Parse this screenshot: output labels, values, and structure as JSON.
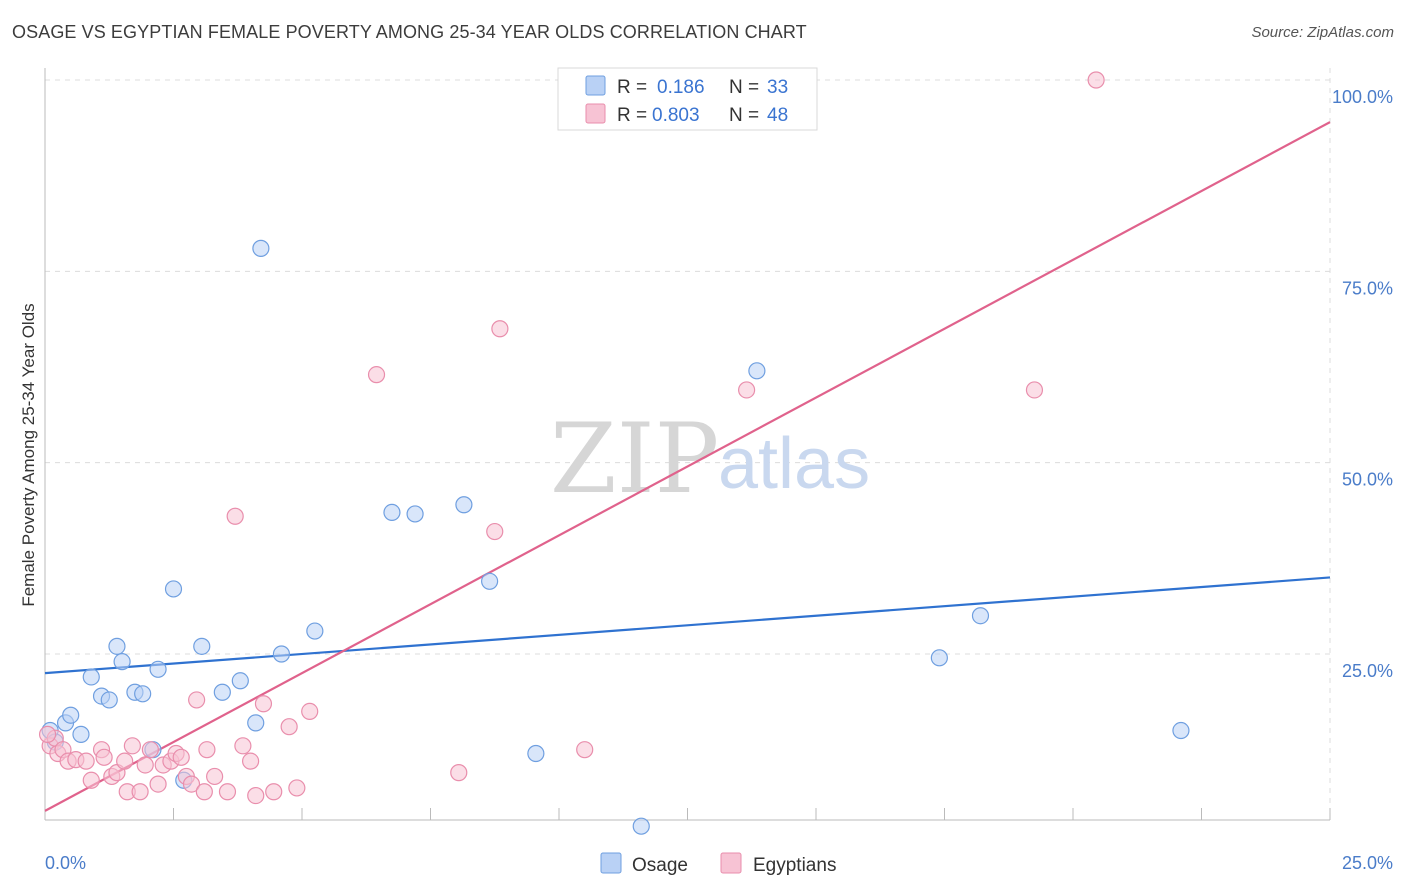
{
  "chart_data": {
    "type": "scatter",
    "title": "OSAGE VS EGYPTIAN FEMALE POVERTY AMONG 25-34 YEAR OLDS CORRELATION CHART",
    "source": "Source: ZipAtlas.com",
    "ylabel": "Female Poverty Among 25-34 Year Olds",
    "xlabel": "",
    "xlim": [
      0,
      25
    ],
    "ylim": [
      0,
      105
    ],
    "x_tick_labels": [
      "0.0%",
      "25.0%"
    ],
    "y_ticks": [
      25,
      50,
      75,
      100
    ],
    "y_tick_labels": [
      "25.0%",
      "50.0%",
      "75.0%",
      "100.0%"
    ],
    "grid": true,
    "watermark": {
      "zip": "ZIP",
      "atlas": "atlas"
    },
    "legend_stats": [
      {
        "series": "Osage",
        "r_label": "R =",
        "r": "0.186",
        "n_label": "N =",
        "n": "33"
      },
      {
        "series": "Egyptians",
        "r_label": "R =",
        "r": "0.803",
        "n_label": "N =",
        "n": "48"
      }
    ],
    "series": [
      {
        "name": "Osage",
        "color": "#6f9fe0",
        "fill": "#b9d1f5",
        "line_color": "#2f72d0",
        "trend": {
          "x": [
            0,
            25
          ],
          "y": [
            22.5,
            35.0
          ]
        },
        "points": [
          {
            "x": 0.1,
            "y": 15.0
          },
          {
            "x": 0.2,
            "y": 13.5
          },
          {
            "x": 0.4,
            "y": 16.0
          },
          {
            "x": 0.5,
            "y": 17.0
          },
          {
            "x": 0.7,
            "y": 14.5
          },
          {
            "x": 0.9,
            "y": 22.0
          },
          {
            "x": 1.1,
            "y": 19.5
          },
          {
            "x": 1.25,
            "y": 19.0
          },
          {
            "x": 1.4,
            "y": 26.0
          },
          {
            "x": 1.5,
            "y": 24.0
          },
          {
            "x": 1.75,
            "y": 20.0
          },
          {
            "x": 1.9,
            "y": 19.8
          },
          {
            "x": 2.1,
            "y": 12.5
          },
          {
            "x": 2.2,
            "y": 23.0
          },
          {
            "x": 2.5,
            "y": 33.5
          },
          {
            "x": 2.7,
            "y": 8.5
          },
          {
            "x": 3.05,
            "y": 26.0
          },
          {
            "x": 3.45,
            "y": 20.0
          },
          {
            "x": 3.8,
            "y": 21.5
          },
          {
            "x": 4.1,
            "y": 16.0
          },
          {
            "x": 4.2,
            "y": 78.0
          },
          {
            "x": 4.6,
            "y": 25.0
          },
          {
            "x": 5.25,
            "y": 28.0
          },
          {
            "x": 6.75,
            "y": 43.5
          },
          {
            "x": 7.2,
            "y": 43.3
          },
          {
            "x": 8.15,
            "y": 44.5
          },
          {
            "x": 8.65,
            "y": 34.5
          },
          {
            "x": 9.55,
            "y": 12.0
          },
          {
            "x": 11.6,
            "y": 2.5
          },
          {
            "x": 13.85,
            "y": 62.0
          },
          {
            "x": 17.4,
            "y": 24.5
          },
          {
            "x": 18.2,
            "y": 30.0
          },
          {
            "x": 22.1,
            "y": 15.0
          }
        ]
      },
      {
        "name": "Egyptians",
        "color": "#e98eac",
        "fill": "#f7c3d4",
        "line_color": "#e0628c",
        "trend": {
          "x": [
            0,
            25
          ],
          "y": [
            4.5,
            94.5
          ]
        },
        "points": [
          {
            "x": 0.1,
            "y": 13.0
          },
          {
            "x": 0.2,
            "y": 14.0
          },
          {
            "x": 0.25,
            "y": 12.0
          },
          {
            "x": 0.35,
            "y": 12.5
          },
          {
            "x": 0.45,
            "y": 11.0
          },
          {
            "x": 0.6,
            "y": 11.2
          },
          {
            "x": 0.8,
            "y": 11.0
          },
          {
            "x": 0.9,
            "y": 8.5
          },
          {
            "x": 1.1,
            "y": 12.5
          },
          {
            "x": 1.15,
            "y": 11.5
          },
          {
            "x": 1.3,
            "y": 9.0
          },
          {
            "x": 1.4,
            "y": 9.5
          },
          {
            "x": 1.55,
            "y": 11.0
          },
          {
            "x": 1.6,
            "y": 7.0
          },
          {
            "x": 1.7,
            "y": 13.0
          },
          {
            "x": 1.85,
            "y": 7.0
          },
          {
            "x": 1.95,
            "y": 10.5
          },
          {
            "x": 2.05,
            "y": 12.5
          },
          {
            "x": 2.2,
            "y": 8.0
          },
          {
            "x": 2.3,
            "y": 10.5
          },
          {
            "x": 2.45,
            "y": 11.0
          },
          {
            "x": 2.55,
            "y": 12.0
          },
          {
            "x": 2.65,
            "y": 11.5
          },
          {
            "x": 2.75,
            "y": 9.0
          },
          {
            "x": 2.85,
            "y": 8.0
          },
          {
            "x": 2.95,
            "y": 19.0
          },
          {
            "x": 3.1,
            "y": 7.0
          },
          {
            "x": 3.15,
            "y": 12.5
          },
          {
            "x": 3.3,
            "y": 9.0
          },
          {
            "x": 3.55,
            "y": 7.0
          },
          {
            "x": 3.7,
            "y": 43.0
          },
          {
            "x": 3.85,
            "y": 13.0
          },
          {
            "x": 4.0,
            "y": 11.0
          },
          {
            "x": 4.1,
            "y": 6.5
          },
          {
            "x": 4.25,
            "y": 18.5
          },
          {
            "x": 4.45,
            "y": 7.0
          },
          {
            "x": 4.75,
            "y": 15.5
          },
          {
            "x": 4.9,
            "y": 7.5
          },
          {
            "x": 5.15,
            "y": 17.5
          },
          {
            "x": 6.45,
            "y": 61.5
          },
          {
            "x": 8.05,
            "y": 9.5
          },
          {
            "x": 8.75,
            "y": 41.0
          },
          {
            "x": 8.85,
            "y": 67.5
          },
          {
            "x": 10.5,
            "y": 12.5
          },
          {
            "x": 13.65,
            "y": 59.5
          },
          {
            "x": 19.25,
            "y": 59.5
          },
          {
            "x": 20.45,
            "y": 100.0
          },
          {
            "x": 0.05,
            "y": 14.5
          }
        ]
      }
    ]
  }
}
